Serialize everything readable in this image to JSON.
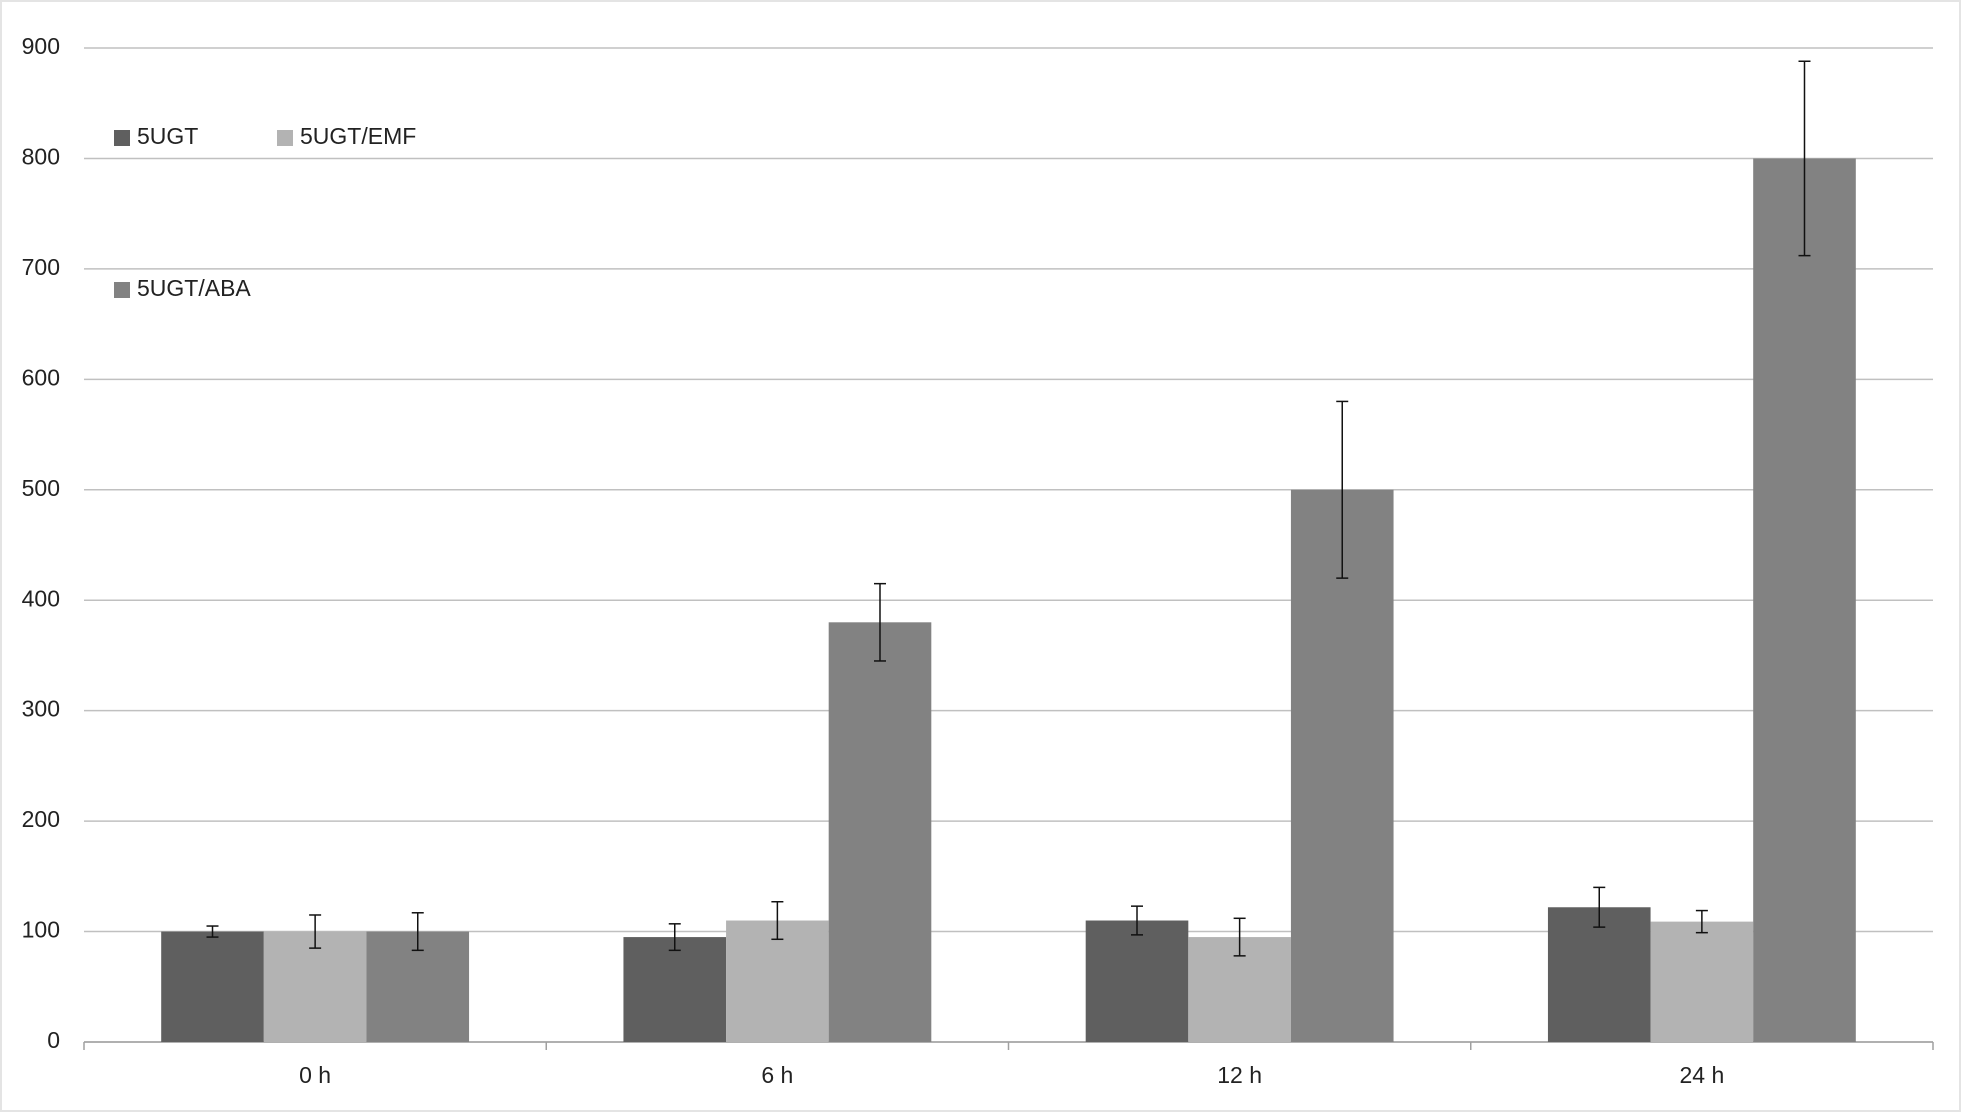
{
  "chart_data": {
    "type": "bar",
    "categories": [
      "0 h",
      "6 h",
      "12 h",
      "24 h"
    ],
    "series": [
      {
        "name": "5UGT",
        "color": "#5f5f5f",
        "values": [
          100,
          95,
          110,
          122
        ],
        "errors": [
          5,
          12,
          13,
          18
        ]
      },
      {
        "name": "5UGT/EMF",
        "color": "#b3b3b3",
        "values": [
          100,
          110,
          95,
          109
        ],
        "errors": [
          15,
          17,
          17,
          10
        ]
      },
      {
        "name": "5UGT/ABA",
        "color": "#828282",
        "values": [
          100,
          380,
          500,
          800
        ],
        "errors": [
          17,
          35,
          80,
          88
        ]
      }
    ],
    "ylim": [
      0,
      900
    ],
    "yticks": [
      0,
      100,
      200,
      300,
      400,
      500,
      600,
      700,
      800,
      900
    ],
    "grid": true,
    "legend": "top-left"
  }
}
